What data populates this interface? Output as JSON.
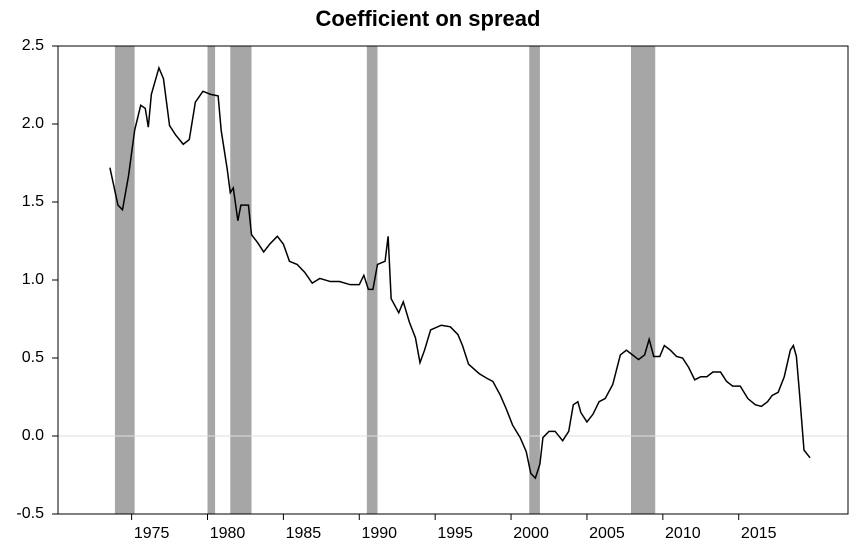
{
  "chart_data": {
    "type": "line",
    "title": "Coefficient on spread",
    "x": [
      1973.57,
      1974.1,
      1974.4,
      1974.8,
      1975.2,
      1975.6,
      1975.9,
      1976.1,
      1976.3,
      1976.8,
      1977.1,
      1977.5,
      1977.9,
      1978.4,
      1978.8,
      1979.2,
      1979.7,
      1980.2,
      1980.7,
      1980.9,
      1981.3,
      1981.5,
      1981.7,
      1982.0,
      1982.2,
      1982.7,
      1982.9,
      1983.3,
      1983.7,
      1984.1,
      1984.6,
      1985.0,
      1985.4,
      1985.9,
      1986.4,
      1986.9,
      1987.4,
      1988.1,
      1988.7,
      1989.4,
      1990.0,
      1990.3,
      1990.6,
      1990.9,
      1991.2,
      1991.7,
      1991.9,
      1992.1,
      1992.6,
      1992.9,
      1993.3,
      1993.7,
      1994.0,
      1994.3,
      1994.7,
      1995.4,
      1996.0,
      1996.5,
      1996.8,
      1997.2,
      1997.9,
      1998.4,
      1998.8,
      1999.3,
      1999.7,
      2000.1,
      2000.6,
      2001.0,
      2001.3,
      2001.6,
      2001.9,
      2002.1,
      2002.5,
      2002.9,
      2003.4,
      2003.8,
      2004.1,
      2004.4,
      2004.6,
      2005.0,
      2005.4,
      2005.8,
      2006.2,
      2006.7,
      2007.2,
      2007.6,
      2008.0,
      2008.4,
      2008.8,
      2009.1,
      2009.4,
      2009.8,
      2010.1,
      2010.5,
      2010.9,
      2011.3,
      2011.7,
      2012.1,
      2012.5,
      2012.9,
      2013.3,
      2013.8,
      2014.2,
      2014.6,
      2015.1,
      2015.6,
      2016.1,
      2016.5,
      2016.9,
      2017.2,
      2017.6,
      2018.0,
      2018.4,
      2018.6,
      2018.8,
      2019.0,
      2019.3,
      2019.7
    ],
    "values": [
      1.72,
      1.48,
      1.45,
      1.67,
      1.96,
      2.12,
      2.1,
      1.98,
      2.19,
      2.36,
      2.29,
      1.99,
      1.93,
      1.87,
      1.9,
      2.14,
      2.21,
      2.19,
      2.18,
      1.96,
      1.71,
      1.56,
      1.59,
      1.38,
      1.48,
      1.48,
      1.29,
      1.24,
      1.18,
      1.23,
      1.28,
      1.23,
      1.12,
      1.1,
      1.05,
      0.98,
      1.01,
      0.99,
      0.99,
      0.97,
      0.97,
      1.03,
      0.94,
      0.94,
      1.1,
      1.12,
      1.28,
      0.88,
      0.79,
      0.86,
      0.73,
      0.63,
      0.47,
      0.55,
      0.68,
      0.71,
      0.7,
      0.65,
      0.58,
      0.46,
      0.4,
      0.37,
      0.35,
      0.26,
      0.17,
      0.07,
      -0.01,
      -0.1,
      -0.24,
      -0.27,
      -0.18,
      -0.01,
      0.03,
      0.03,
      -0.03,
      0.03,
      0.2,
      0.22,
      0.15,
      0.09,
      0.14,
      0.22,
      0.24,
      0.33,
      0.52,
      0.55,
      0.52,
      0.49,
      0.52,
      0.62,
      0.51,
      0.51,
      0.58,
      0.55,
      0.51,
      0.5,
      0.44,
      0.36,
      0.38,
      0.38,
      0.41,
      0.41,
      0.35,
      0.32,
      0.32,
      0.24,
      0.2,
      0.19,
      0.22,
      0.26,
      0.28,
      0.38,
      0.55,
      0.58,
      0.51,
      0.28,
      -0.09,
      -0.14
    ],
    "color": "#000000",
    "shaded_periods": [
      [
        1973.9,
        1975.2
      ],
      [
        1980.0,
        1980.5
      ],
      [
        1981.5,
        1982.9
      ],
      [
        1990.5,
        1991.2
      ],
      [
        2001.2,
        2001.9
      ],
      [
        2007.9,
        2009.5
      ]
    ],
    "shade_color": "#a6a6a6",
    "xlim": [
      1970.15,
      2022.2
    ],
    "xticks": [
      1975,
      1980,
      1985,
      1990,
      1995,
      2000,
      2005,
      2010,
      2015
    ],
    "ylim": [
      -0.5,
      2.5
    ],
    "yticks": [
      2.5,
      {
        "value": 2,
        "label": "2.0"
      },
      1.5,
      {
        "value": 1,
        "label": "1.0"
      },
      0.5,
      {
        "value": 0,
        "label": "0.0"
      },
      -0.5
    ]
  }
}
